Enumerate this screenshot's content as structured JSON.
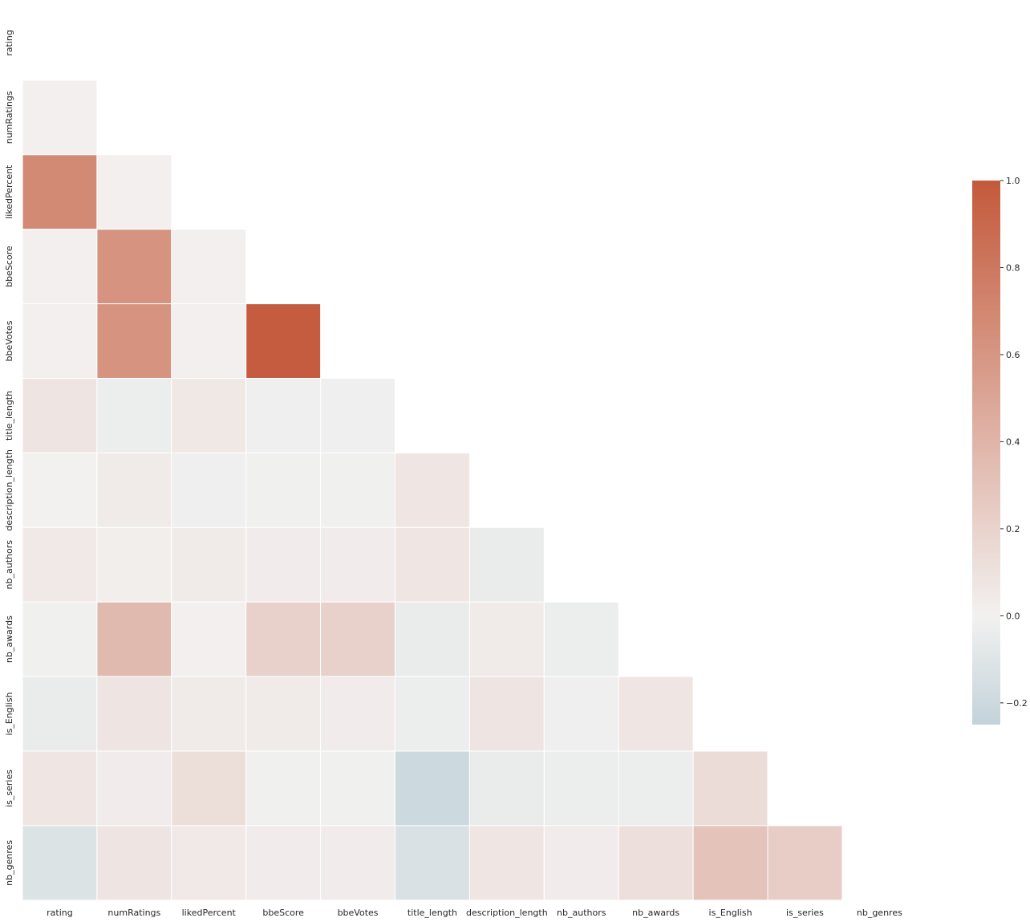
{
  "chart_data": {
    "type": "heatmap",
    "title": "",
    "xlabel": "",
    "ylabel": "",
    "variables": [
      "rating",
      "numRatings",
      "likedPercent",
      "bbeScore",
      "bbeVotes",
      "title_length",
      "description_length",
      "nb_authors",
      "nb_awards",
      "is_English",
      "is_series",
      "nb_genres"
    ],
    "mask": "upper triangle including diagonal",
    "lower_triangle": [
      [],
      [
        0.01
      ],
      [
        0.68,
        0.01
      ],
      [
        0.01,
        0.62,
        0.01
      ],
      [
        0.01,
        0.62,
        0.01,
        0.98
      ],
      [
        0.08,
        -0.03,
        0.06,
        -0.02,
        -0.02
      ],
      [
        0.0,
        0.04,
        -0.02,
        -0.01,
        -0.01,
        0.07
      ],
      [
        0.05,
        0.02,
        0.04,
        0.03,
        0.03,
        0.07,
        -0.04
      ],
      [
        -0.01,
        0.36,
        0.01,
        0.21,
        0.21,
        -0.04,
        0.04,
        -0.03
      ],
      [
        -0.04,
        0.08,
        0.04,
        0.04,
        0.03,
        -0.03,
        0.08,
        -0.02,
        0.07
      ],
      [
        0.07,
        0.03,
        0.12,
        -0.01,
        -0.01,
        -0.2,
        -0.04,
        -0.03,
        -0.03,
        0.14
      ],
      [
        -0.12,
        0.08,
        0.05,
        0.03,
        0.03,
        -0.13,
        0.07,
        0.03,
        0.11,
        0.3,
        0.24
      ]
    ],
    "colorbar": {
      "vmin": -0.25,
      "vmax": 1.0,
      "center": 0,
      "ticks": [
        "1.0",
        "0.8",
        "0.6",
        "0.4",
        "0.2",
        "0.0",
        "−0.2"
      ],
      "tick_values": [
        1.0,
        0.8,
        0.6,
        0.4,
        0.2,
        0.0,
        -0.2
      ]
    },
    "colors": {
      "negative": "#c3d3da",
      "center": "#f2f1f0",
      "positive": "#c4593b",
      "gridline": "#ffffff",
      "text": "#262626"
    }
  }
}
